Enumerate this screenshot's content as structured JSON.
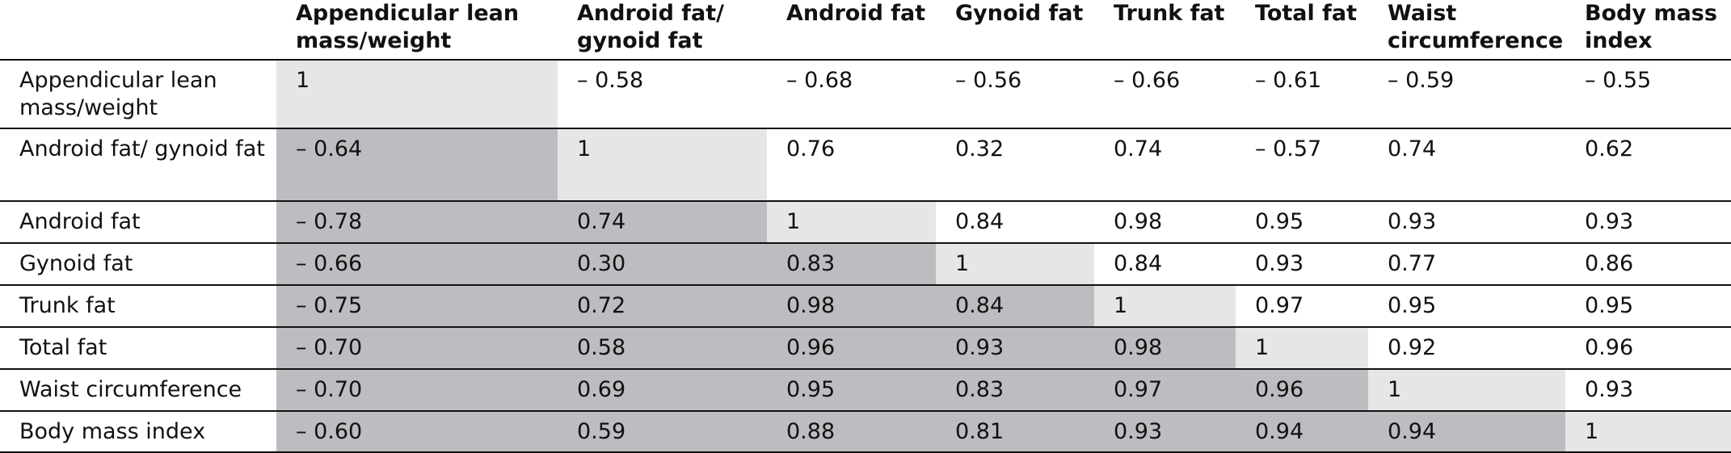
{
  "table": {
    "columns": [
      "Appendicular lean mass/weight",
      "Android fat/ gynoid fat",
      "Android fat",
      "Gynoid fat",
      "Trunk fat",
      "Total fat",
      "Waist circumference",
      "Body mass index"
    ],
    "rows": [
      {
        "label": "Appendicular lean mass/weight",
        "cells": [
          "1",
          "– 0.58",
          "– 0.68",
          "– 0.56",
          "– 0.66",
          "– 0.61",
          "– 0.59",
          "– 0.55"
        ]
      },
      {
        "label": "Android fat/ gynoid fat",
        "cells": [
          "– 0.64",
          "1",
          "0.76",
          "0.32",
          "0.74",
          "– 0.57",
          "0.74",
          "0.62"
        ]
      },
      {
        "label": "Android fat",
        "cells": [
          "– 0.78",
          "0.74",
          "1",
          "0.84",
          "0.98",
          "0.95",
          "0.93",
          "0.93"
        ]
      },
      {
        "label": "Gynoid fat",
        "cells": [
          "– 0.66",
          "0.30",
          "0.83",
          "1",
          "0.84",
          "0.93",
          "0.77",
          "0.86"
        ]
      },
      {
        "label": "Trunk fat",
        "cells": [
          "– 0.75",
          "0.72",
          "0.98",
          "0.84",
          "1",
          "0.97",
          "0.95",
          "0.95"
        ]
      },
      {
        "label": "Total fat",
        "cells": [
          "– 0.70",
          "0.58",
          "0.96",
          "0.93",
          "0.98",
          "1",
          "0.92",
          "0.96"
        ]
      },
      {
        "label": "Waist circumference",
        "cells": [
          "– 0.70",
          "0.69",
          "0.95",
          "0.83",
          "0.97",
          "0.96",
          "1",
          "0.93"
        ]
      },
      {
        "label": "Body mass index",
        "cells": [
          "– 0.60",
          "0.59",
          "0.88",
          "0.81",
          "0.93",
          "0.94",
          "0.94",
          "1"
        ]
      }
    ]
  }
}
